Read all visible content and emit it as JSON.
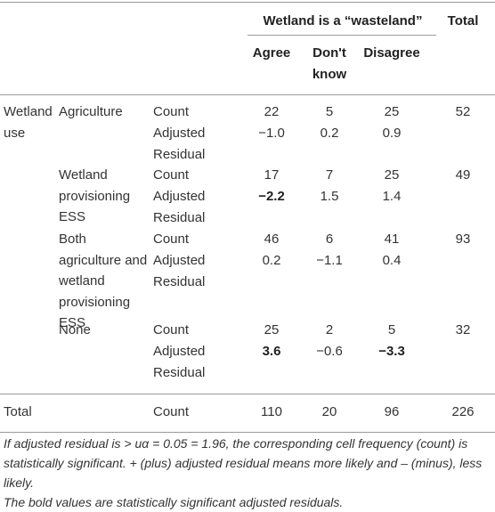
{
  "table": {
    "header": {
      "group": "Wetland is a “wasteland”",
      "total": "Total",
      "columns": [
        "Agree",
        "Don't know",
        "Disagree"
      ]
    },
    "row_group": [
      "Wetland",
      "use"
    ],
    "rows": [
      {
        "label": "Agriculture",
        "count_label": "Count",
        "counts": [
          22,
          5,
          25
        ],
        "total": 52,
        "residual_label": "Adjusted Residual",
        "residuals": [
          "−1.0",
          "0.2",
          "0.9"
        ],
        "residual_bold": [
          false,
          false,
          false
        ]
      },
      {
        "label": "Wetland provisioning ESS",
        "count_label": "Count",
        "counts": [
          17,
          7,
          25
        ],
        "total": 49,
        "residual_label": "Adjusted Residual",
        "residuals": [
          "−2.2",
          "1.5",
          "1.4"
        ],
        "residual_bold": [
          true,
          false,
          false
        ]
      },
      {
        "label": "Both agriculture and wetland provisioning ESS",
        "count_label": "Count",
        "counts": [
          46,
          6,
          41
        ],
        "total": 93,
        "residual_label": "Adjusted Residual",
        "residuals": [
          "0.2",
          "−1.1",
          "0.4"
        ],
        "residual_bold": [
          false,
          false,
          false
        ]
      },
      {
        "label": "None",
        "count_label": "Count",
        "counts": [
          25,
          2,
          5
        ],
        "total": 32,
        "residual_label": "Adjusted Residual",
        "residuals": [
          "3.6",
          "−0.6",
          "−3.3"
        ],
        "residual_bold": [
          true,
          false,
          true
        ]
      }
    ],
    "total_row": {
      "label": "Total",
      "count_label": "Count",
      "counts": [
        110,
        20,
        96
      ],
      "total": 226
    },
    "footnotes": [
      "If adjusted residual is > uα = 0.05 = 1.96, the corresponding cell frequency (count) is statistically significant. + (plus) adjusted residual means more likely and – (minus), less likely.",
      "The bold values are statistically significant adjusted residuals."
    ]
  }
}
